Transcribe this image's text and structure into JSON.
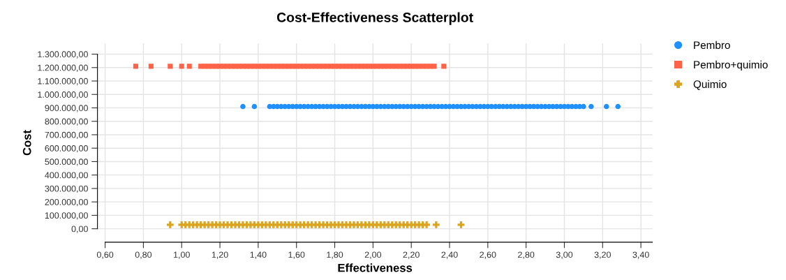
{
  "chart_data": {
    "type": "scatter",
    "title": "Cost-Effectiveness Scatterplot",
    "xlabel": "Effectiveness",
    "ylabel": "Cost",
    "xlim": [
      0.56,
      3.46
    ],
    "ylim": [
      -100000,
      1380000
    ],
    "xticks": [
      {
        "value": 0.6,
        "label": "0,60"
      },
      {
        "value": 0.8,
        "label": "0,80"
      },
      {
        "value": 1.0,
        "label": "1,00"
      },
      {
        "value": 1.2,
        "label": "1,20"
      },
      {
        "value": 1.4,
        "label": "1,40"
      },
      {
        "value": 1.6,
        "label": "1,60"
      },
      {
        "value": 1.8,
        "label": "1,80"
      },
      {
        "value": 2.0,
        "label": "2,00"
      },
      {
        "value": 2.2,
        "label": "2,20"
      },
      {
        "value": 2.4,
        "label": "2,40"
      },
      {
        "value": 2.6,
        "label": "2,60"
      },
      {
        "value": 2.8,
        "label": "2,80"
      },
      {
        "value": 3.0,
        "label": "3,00"
      },
      {
        "value": 3.2,
        "label": "3,20"
      },
      {
        "value": 3.4,
        "label": "3,40"
      }
    ],
    "yticks": [
      {
        "value": 0,
        "label": "0,00"
      },
      {
        "value": 100000,
        "label": "100.000,00"
      },
      {
        "value": 200000,
        "label": "200.000,00"
      },
      {
        "value": 300000,
        "label": "300.000,00"
      },
      {
        "value": 400000,
        "label": "400.000,00"
      },
      {
        "value": 500000,
        "label": "500.000,00"
      },
      {
        "value": 600000,
        "label": "600.000,00"
      },
      {
        "value": 700000,
        "label": "700.000,00"
      },
      {
        "value": 800000,
        "label": "800.000,00"
      },
      {
        "value": 900000,
        "label": "900.000,00"
      },
      {
        "value": 1000000,
        "label": "1.000.000,00"
      },
      {
        "value": 1100000,
        "label": "1.100.000,00"
      },
      {
        "value": 1200000,
        "label": "1.200.000,00"
      },
      {
        "value": 1300000,
        "label": "1.300.000,00"
      }
    ],
    "grid": true,
    "legend": "right",
    "series": [
      {
        "name": "Pembro",
        "color": "#1e90ff",
        "marker": "circle",
        "x": [
          1.32,
          1.38,
          1.46,
          1.48,
          1.5,
          1.52,
          1.54,
          1.56,
          1.58,
          1.6,
          1.62,
          1.64,
          1.66,
          1.68,
          1.7,
          1.72,
          1.74,
          1.76,
          1.78,
          1.8,
          1.82,
          1.84,
          1.86,
          1.88,
          1.9,
          1.92,
          1.94,
          1.96,
          1.98,
          2.0,
          2.02,
          2.04,
          2.06,
          2.08,
          2.1,
          2.12,
          2.14,
          2.16,
          2.18,
          2.2,
          2.22,
          2.24,
          2.26,
          2.28,
          2.3,
          2.32,
          2.34,
          2.36,
          2.38,
          2.4,
          2.42,
          2.44,
          2.46,
          2.48,
          2.5,
          2.52,
          2.54,
          2.56,
          2.58,
          2.6,
          2.62,
          2.64,
          2.66,
          2.68,
          2.7,
          2.72,
          2.74,
          2.76,
          2.78,
          2.8,
          2.82,
          2.84,
          2.86,
          2.88,
          2.9,
          2.92,
          2.94,
          2.96,
          2.98,
          3.0,
          3.02,
          3.04,
          3.06,
          3.08,
          3.1,
          3.14,
          3.22,
          3.28
        ],
        "values": [
          910000,
          910000,
          910000,
          910000,
          910000,
          910000,
          910000,
          910000,
          910000,
          910000,
          910000,
          910000,
          910000,
          910000,
          910000,
          910000,
          910000,
          910000,
          910000,
          910000,
          910000,
          910000,
          910000,
          910000,
          910000,
          910000,
          910000,
          910000,
          910000,
          910000,
          910000,
          910000,
          910000,
          910000,
          910000,
          910000,
          910000,
          910000,
          910000,
          910000,
          910000,
          910000,
          910000,
          910000,
          910000,
          910000,
          910000,
          910000,
          910000,
          910000,
          910000,
          910000,
          910000,
          910000,
          910000,
          910000,
          910000,
          910000,
          910000,
          910000,
          910000,
          910000,
          910000,
          910000,
          910000,
          910000,
          910000,
          910000,
          910000,
          910000,
          910000,
          910000,
          910000,
          910000,
          910000,
          910000,
          910000,
          910000,
          910000,
          910000,
          910000,
          910000,
          910000,
          910000,
          910000,
          910000,
          910000,
          910000
        ]
      },
      {
        "name": "Pembro+quimio",
        "color": "#ff6347",
        "marker": "square",
        "x": [
          0.76,
          0.84,
          0.94,
          1.0,
          1.04,
          1.1,
          1.12,
          1.14,
          1.16,
          1.18,
          1.2,
          1.22,
          1.24,
          1.26,
          1.28,
          1.3,
          1.32,
          1.34,
          1.36,
          1.38,
          1.4,
          1.42,
          1.44,
          1.46,
          1.48,
          1.5,
          1.52,
          1.54,
          1.56,
          1.58,
          1.6,
          1.62,
          1.64,
          1.66,
          1.68,
          1.7,
          1.72,
          1.74,
          1.76,
          1.78,
          1.8,
          1.82,
          1.84,
          1.86,
          1.88,
          1.9,
          1.92,
          1.94,
          1.96,
          1.98,
          2.0,
          2.02,
          2.04,
          2.06,
          2.08,
          2.1,
          2.12,
          2.14,
          2.16,
          2.18,
          2.2,
          2.22,
          2.24,
          2.26,
          2.28,
          2.3,
          2.32,
          2.37
        ],
        "values": [
          1210000,
          1210000,
          1210000,
          1210000,
          1210000,
          1210000,
          1210000,
          1210000,
          1210000,
          1210000,
          1210000,
          1210000,
          1210000,
          1210000,
          1210000,
          1210000,
          1210000,
          1210000,
          1210000,
          1210000,
          1210000,
          1210000,
          1210000,
          1210000,
          1210000,
          1210000,
          1210000,
          1210000,
          1210000,
          1210000,
          1210000,
          1210000,
          1210000,
          1210000,
          1210000,
          1210000,
          1210000,
          1210000,
          1210000,
          1210000,
          1210000,
          1210000,
          1210000,
          1210000,
          1210000,
          1210000,
          1210000,
          1210000,
          1210000,
          1210000,
          1210000,
          1210000,
          1210000,
          1210000,
          1210000,
          1210000,
          1210000,
          1210000,
          1210000,
          1210000,
          1210000,
          1210000,
          1210000,
          1210000,
          1210000,
          1210000,
          1210000,
          1210000
        ]
      },
      {
        "name": "Quimio",
        "color": "#daa520",
        "marker": "cross",
        "x": [
          0.94,
          1.0,
          1.02,
          1.04,
          1.06,
          1.08,
          1.1,
          1.12,
          1.14,
          1.16,
          1.18,
          1.2,
          1.22,
          1.24,
          1.26,
          1.28,
          1.3,
          1.32,
          1.34,
          1.36,
          1.38,
          1.4,
          1.42,
          1.44,
          1.46,
          1.48,
          1.5,
          1.52,
          1.54,
          1.56,
          1.58,
          1.6,
          1.62,
          1.64,
          1.66,
          1.68,
          1.7,
          1.72,
          1.74,
          1.76,
          1.78,
          1.8,
          1.82,
          1.84,
          1.86,
          1.88,
          1.9,
          1.92,
          1.94,
          1.96,
          1.98,
          2.0,
          2.02,
          2.04,
          2.06,
          2.08,
          2.1,
          2.12,
          2.14,
          2.16,
          2.18,
          2.2,
          2.22,
          2.24,
          2.26,
          2.28,
          2.33,
          2.46
        ],
        "values": [
          30000,
          30000,
          30000,
          30000,
          30000,
          30000,
          30000,
          30000,
          30000,
          30000,
          30000,
          30000,
          30000,
          30000,
          30000,
          30000,
          30000,
          30000,
          30000,
          30000,
          30000,
          30000,
          30000,
          30000,
          30000,
          30000,
          30000,
          30000,
          30000,
          30000,
          30000,
          30000,
          30000,
          30000,
          30000,
          30000,
          30000,
          30000,
          30000,
          30000,
          30000,
          30000,
          30000,
          30000,
          30000,
          30000,
          30000,
          30000,
          30000,
          30000,
          30000,
          30000,
          30000,
          30000,
          30000,
          30000,
          30000,
          30000,
          30000,
          30000,
          30000,
          30000,
          30000,
          30000,
          30000,
          30000,
          30000,
          30000
        ]
      }
    ]
  }
}
